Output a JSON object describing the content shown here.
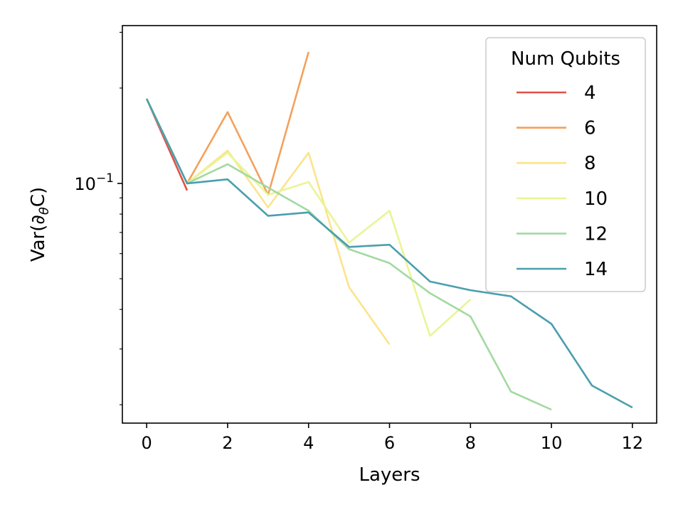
{
  "chart_data": {
    "type": "line",
    "xlabel": "Layers",
    "ylabel": "Var(∂θC)",
    "ylabel_base": "Var(∂",
    "ylabel_sub": "θ",
    "ylabel_end": "C)",
    "y_scale": "log",
    "xlim": [
      -0.6,
      12.6
    ],
    "ylim": [
      0.0175,
      0.315
    ],
    "xticks": [
      0,
      2,
      4,
      6,
      8,
      10,
      12
    ],
    "xtick_labels": [
      "0",
      "2",
      "4",
      "6",
      "8",
      "10",
      "12"
    ],
    "ytick_major": [
      0.1
    ],
    "ytick_label_base": "10",
    "ytick_label_exp": "−1",
    "grid": false,
    "legend": {
      "title": "Num Qubits",
      "placement": "top-right"
    },
    "series": [
      {
        "name": "4",
        "color": "#e0514a",
        "x": [
          0,
          1
        ],
        "y": [
          0.185,
          0.095
        ]
      },
      {
        "name": "6",
        "color": "#f4a15c",
        "x": [
          0,
          1,
          2,
          3,
          4
        ],
        "y": [
          0.185,
          0.1,
          0.168,
          0.092,
          0.26
        ]
      },
      {
        "name": "8",
        "color": "#fbe48c",
        "x": [
          0,
          1,
          2,
          3,
          4,
          5,
          6
        ],
        "y": [
          0.185,
          0.1,
          0.127,
          0.084,
          0.125,
          0.047,
          0.031
        ]
      },
      {
        "name": "10",
        "color": "#e9f596",
        "x": [
          0,
          1,
          2,
          3,
          4,
          5,
          6,
          7,
          8
        ],
        "y": [
          0.185,
          0.1,
          0.125,
          0.092,
          0.101,
          0.065,
          0.082,
          0.033,
          0.043
        ]
      },
      {
        "name": "12",
        "color": "#a3d9a0",
        "x": [
          0,
          1,
          2,
          3,
          4,
          5,
          6,
          7,
          8,
          9,
          10
        ],
        "y": [
          0.185,
          0.1,
          0.115,
          0.097,
          0.082,
          0.062,
          0.056,
          0.045,
          0.038,
          0.022,
          0.0193
        ]
      },
      {
        "name": "14",
        "color": "#4a9fad",
        "x": [
          0,
          1,
          2,
          3,
          4,
          5,
          6,
          7,
          8,
          9,
          10,
          11,
          12
        ],
        "y": [
          0.185,
          0.1,
          0.103,
          0.079,
          0.081,
          0.063,
          0.064,
          0.049,
          0.046,
          0.044,
          0.036,
          0.023,
          0.0196
        ]
      }
    ]
  }
}
